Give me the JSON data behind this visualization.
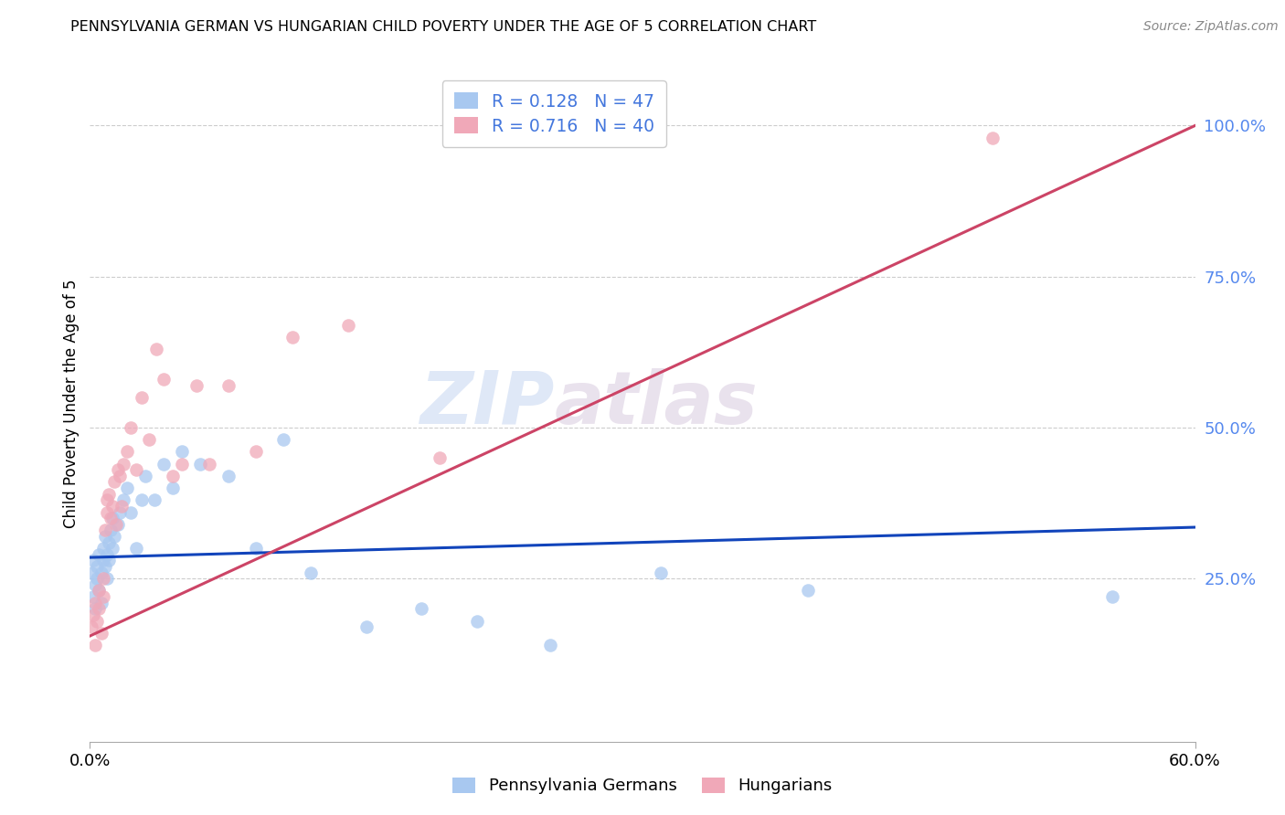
{
  "title": "PENNSYLVANIA GERMAN VS HUNGARIAN CHILD POVERTY UNDER THE AGE OF 5 CORRELATION CHART",
  "source": "Source: ZipAtlas.com",
  "ylabel": "Child Poverty Under the Age of 5",
  "ytick_labels": [
    "100.0%",
    "75.0%",
    "50.0%",
    "25.0%"
  ],
  "ytick_values": [
    1.0,
    0.75,
    0.5,
    0.25
  ],
  "xmin": 0.0,
  "xmax": 0.6,
  "ymin": -0.02,
  "ymax": 1.1,
  "blue_color": "#a8c8f0",
  "pink_color": "#f0a8b8",
  "line_blue": "#1144bb",
  "line_pink": "#cc4466",
  "legend_R_blue": "0.128",
  "legend_N_blue": "47",
  "legend_R_pink": "0.716",
  "legend_N_pink": "40",
  "watermark_zip": "ZIP",
  "watermark_atlas": "atlas",
  "blue_line_y0": 0.285,
  "blue_line_y1": 0.335,
  "pink_line_y0": 0.155,
  "pink_line_y1": 1.0,
  "pa_german_x": [
    0.001,
    0.002,
    0.002,
    0.003,
    0.003,
    0.004,
    0.004,
    0.005,
    0.005,
    0.006,
    0.006,
    0.007,
    0.007,
    0.008,
    0.008,
    0.009,
    0.009,
    0.01,
    0.01,
    0.011,
    0.012,
    0.012,
    0.013,
    0.015,
    0.016,
    0.018,
    0.02,
    0.022,
    0.025,
    0.028,
    0.03,
    0.035,
    0.04,
    0.045,
    0.05,
    0.06,
    0.075,
    0.09,
    0.105,
    0.12,
    0.15,
    0.18,
    0.21,
    0.25,
    0.31,
    0.39,
    0.555
  ],
  "pa_german_y": [
    0.26,
    0.22,
    0.28,
    0.24,
    0.2,
    0.25,
    0.27,
    0.23,
    0.29,
    0.26,
    0.21,
    0.28,
    0.3,
    0.27,
    0.32,
    0.29,
    0.25,
    0.31,
    0.28,
    0.33,
    0.3,
    0.35,
    0.32,
    0.34,
    0.36,
    0.38,
    0.4,
    0.36,
    0.3,
    0.38,
    0.42,
    0.38,
    0.44,
    0.4,
    0.46,
    0.44,
    0.42,
    0.3,
    0.48,
    0.26,
    0.17,
    0.2,
    0.18,
    0.14,
    0.26,
    0.23,
    0.22
  ],
  "hungarian_x": [
    0.001,
    0.002,
    0.003,
    0.003,
    0.004,
    0.005,
    0.005,
    0.006,
    0.007,
    0.007,
    0.008,
    0.009,
    0.009,
    0.01,
    0.011,
    0.012,
    0.013,
    0.014,
    0.015,
    0.016,
    0.017,
    0.018,
    0.02,
    0.022,
    0.025,
    0.028,
    0.032,
    0.036,
    0.04,
    0.045,
    0.05,
    0.058,
    0.065,
    0.075,
    0.09,
    0.11,
    0.14,
    0.19,
    0.29,
    0.49
  ],
  "hungarian_y": [
    0.17,
    0.19,
    0.14,
    0.21,
    0.18,
    0.2,
    0.23,
    0.16,
    0.22,
    0.25,
    0.33,
    0.36,
    0.38,
    0.39,
    0.35,
    0.37,
    0.41,
    0.34,
    0.43,
    0.42,
    0.37,
    0.44,
    0.46,
    0.5,
    0.43,
    0.55,
    0.48,
    0.63,
    0.58,
    0.42,
    0.44,
    0.57,
    0.44,
    0.57,
    0.46,
    0.65,
    0.67,
    0.45,
    1.02,
    0.98
  ]
}
